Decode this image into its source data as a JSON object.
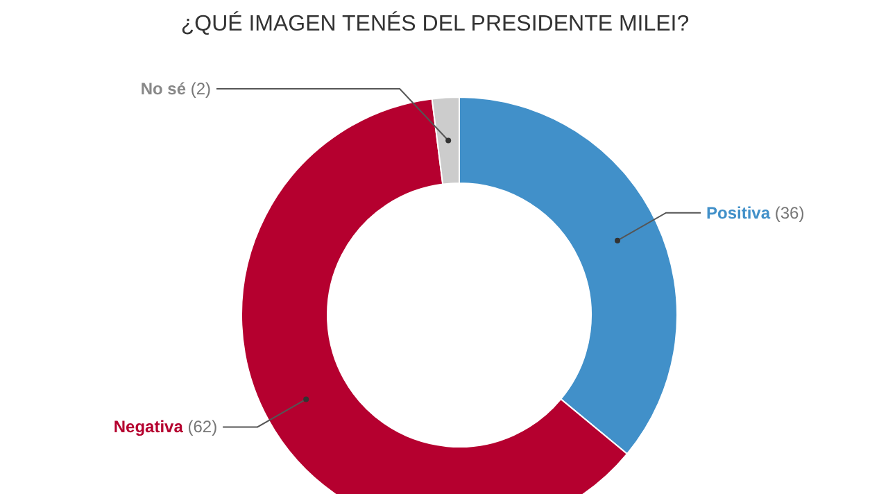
{
  "chart_data": {
    "type": "donut",
    "title": "¿QUÉ IMAGEN TENÉS DEL PRESIDENTE MILEI?",
    "categories": [
      "Positiva",
      "Negativa",
      "No sé"
    ],
    "values": [
      36,
      62,
      2
    ],
    "colors": [
      "#4190c9",
      "#b5002f",
      "#cccccc"
    ],
    "value_labels": [
      "(36)",
      "(62)",
      "(2)"
    ]
  }
}
